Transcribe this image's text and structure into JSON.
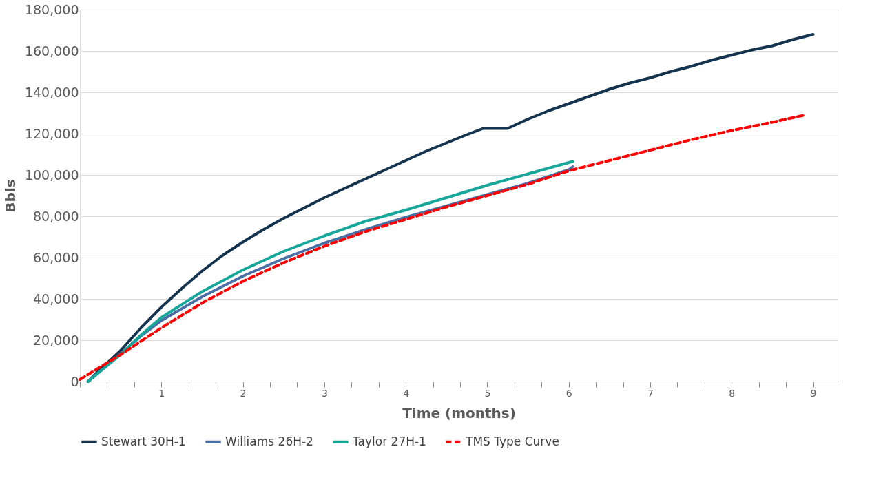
{
  "chart_data": {
    "type": "line",
    "xlabel": "Time (months)",
    "ylabel": "Bbls",
    "xlim": [
      0,
      9.3
    ],
    "ylim": [
      0,
      180000
    ],
    "xticks": [
      {
        "value": 0,
        "label": null
      },
      {
        "value": 0.333,
        "label": null
      },
      {
        "value": 0.667,
        "label": null
      },
      1,
      {
        "value": 1.333,
        "label": null
      },
      {
        "value": 1.667,
        "label": null
      },
      2,
      {
        "value": 2.333,
        "label": null
      },
      {
        "value": 2.667,
        "label": null
      },
      3,
      {
        "value": 3.333,
        "label": null
      },
      {
        "value": 3.667,
        "label": null
      },
      4,
      {
        "value": 4.333,
        "label": null
      },
      {
        "value": 4.667,
        "label": null
      },
      5,
      {
        "value": 5.333,
        "label": null
      },
      {
        "value": 5.667,
        "label": null
      },
      6,
      {
        "value": 6.333,
        "label": null
      },
      {
        "value": 6.667,
        "label": null
      },
      7,
      {
        "value": 7.333,
        "label": null
      },
      {
        "value": 7.667,
        "label": null
      },
      8,
      {
        "value": 8.333,
        "label": null
      },
      {
        "value": 8.667,
        "label": null
      },
      9
    ],
    "yticks": [
      0,
      {
        "value": 20000,
        "label": "20,000"
      },
      {
        "value": 40000,
        "label": "40,000"
      },
      {
        "value": 60000,
        "label": "60,000"
      },
      {
        "value": 80000,
        "label": "80,000"
      },
      {
        "value": 100000,
        "label": "100,000"
      },
      {
        "value": 120000,
        "label": "120,000"
      },
      {
        "value": 140000,
        "label": "140,000"
      },
      {
        "value": 160000,
        "label": "160,000"
      },
      {
        "value": 180000,
        "label": "180,000"
      }
    ],
    "grid": "y",
    "legend": "bottom",
    "marker": "none",
    "series": [
      {
        "name": "Stewart 30H-1",
        "color": "#14334f",
        "line_style": "solid",
        "x": [
          0.1,
          0.2,
          0.5,
          0.75,
          1,
          1.25,
          1.5,
          1.75,
          2,
          2.25,
          2.5,
          2.75,
          3,
          3.25,
          3.5,
          3.75,
          4,
          4.25,
          4.5,
          4.75,
          4.95,
          5.25,
          5.5,
          5.75,
          6,
          6.25,
          6.5,
          6.75,
          7,
          7.25,
          7.5,
          7.75,
          8,
          8.25,
          8.5,
          8.75,
          9
        ],
        "values": [
          0,
          4000,
          15000,
          26000,
          36000,
          45000,
          53500,
          61000,
          67500,
          73500,
          79000,
          84000,
          89000,
          93500,
          98000,
          102500,
          107000,
          111500,
          115500,
          119500,
          122500,
          122500,
          127000,
          131000,
          134500,
          138000,
          141500,
          144500,
          147000,
          150000,
          152500,
          155500,
          158000,
          160500,
          162500,
          165500,
          168000
        ]
      },
      {
        "name": "Williams 26H-2",
        "color": "#4a6fa5",
        "line_style": "solid",
        "x": [
          0.1,
          0.25,
          0.5,
          0.75,
          1,
          1.5,
          2,
          2.5,
          3,
          3.5,
          4,
          4.5,
          5,
          5.5,
          6,
          6.05
        ],
        "values": [
          0,
          5000,
          13500,
          22000,
          29500,
          41000,
          51000,
          59500,
          67000,
          73500,
          79500,
          85000,
          90500,
          96000,
          102500,
          104000
        ]
      },
      {
        "name": "Taylor 27H-1",
        "color": "#16a79a",
        "line_style": "solid",
        "x": [
          0.1,
          0.25,
          0.5,
          0.75,
          1,
          1.5,
          2,
          2.5,
          3,
          3.5,
          4,
          4.5,
          5,
          5.5,
          6,
          6.05
        ],
        "values": [
          0,
          5000,
          13000,
          22500,
          31000,
          43500,
          54000,
          63000,
          70500,
          77500,
          83000,
          89000,
          95000,
          100500,
          106000,
          106500
        ]
      },
      {
        "name": "TMS Type Curve",
        "color": "#ff0000",
        "line_style": "dashed",
        "x": [
          0,
          0.5,
          1,
          1.5,
          2,
          2.5,
          3,
          3.5,
          4,
          4.5,
          5,
          5.5,
          6,
          6.5,
          7,
          7.5,
          8,
          8.5,
          8.9
        ],
        "values": [
          1000,
          13000,
          26000,
          38000,
          48500,
          57500,
          65500,
          72500,
          78500,
          84500,
          90000,
          95500,
          102000,
          107000,
          112000,
          117000,
          121500,
          125500,
          129000
        ]
      }
    ]
  }
}
